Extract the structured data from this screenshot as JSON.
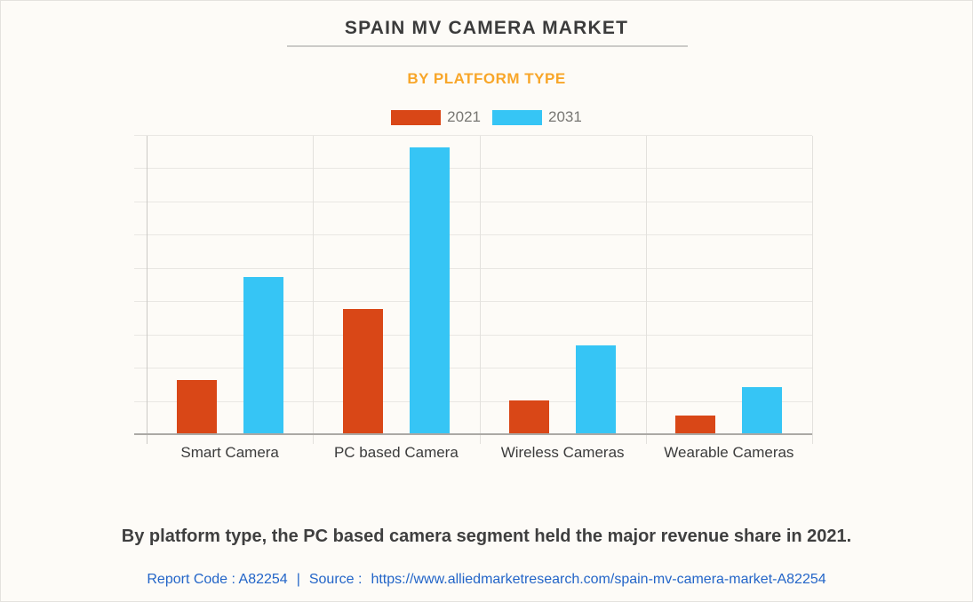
{
  "page": {
    "title": "SPAIN MV CAMERA MARKET",
    "subtitle": "BY PLATFORM TYPE",
    "summary": "By platform type, the PC based camera segment held the major revenue share in 2021.",
    "footer": {
      "report_code": "Report Code : A82254",
      "separator": "|",
      "source_label": "Source :",
      "source_url": "https://www.alliedmarketresearch.com/spain-mv-camera-market-A82254"
    }
  },
  "colors": {
    "series_2021": "#d94717",
    "series_2031": "#36c5f5",
    "subtitle_accent": "#f8a629",
    "footer_link": "#2365c8",
    "background": "#fdfbf7"
  },
  "legend": [
    {
      "label": "2021",
      "color": "#d94717"
    },
    {
      "label": "2031",
      "color": "#36c5f5"
    }
  ],
  "chart_data": {
    "type": "bar",
    "title": "SPAIN MV CAMERA MARKET",
    "subtitle": "BY PLATFORM TYPE",
    "categories": [
      "Smart Camera",
      "PC based Camera",
      "Wireless Cameras",
      "Wearable Cameras"
    ],
    "series": [
      {
        "name": "2021",
        "color": "#d94717",
        "values": [
          1.65,
          3.8,
          1.05,
          0.6
        ]
      },
      {
        "name": "2031",
        "color": "#36c5f5",
        "values": [
          4.75,
          8.65,
          2.7,
          1.45
        ]
      }
    ],
    "xlabel": "",
    "ylabel": "",
    "ylim": [
      0,
      9
    ],
    "gridlines": 9,
    "grid": true,
    "y_tick_labels_shown": false,
    "value_unit": "gridline intervals (no numeric axis labels shown)",
    "legend_position": "top"
  }
}
